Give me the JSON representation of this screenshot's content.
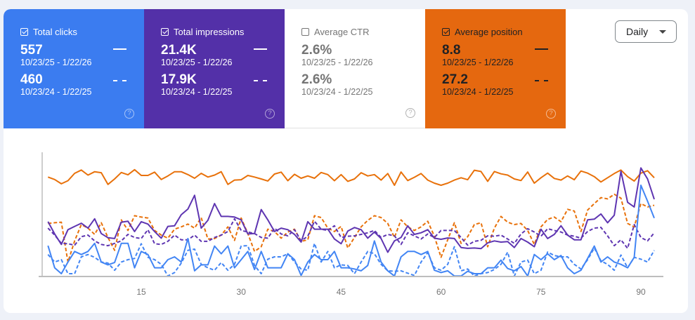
{
  "metrics": [
    {
      "label": "Total clicks",
      "checked": true,
      "current": "557",
      "current_range": "10/23/25 - 1/22/26",
      "previous": "460",
      "previous_range": "10/23/24 - 1/22/25",
      "color": "#3b7cf0"
    },
    {
      "label": "Total impressions",
      "checked": true,
      "current": "21.4K",
      "current_range": "10/23/25 - 1/22/26",
      "previous": "17.9K",
      "previous_range": "10/23/24 - 1/22/25",
      "color": "#5330a8"
    },
    {
      "label": "Average CTR",
      "checked": false,
      "current": "2.6%",
      "current_range": "10/23/25 - 1/22/26",
      "previous": "2.6%",
      "previous_range": "10/23/24 - 1/22/25",
      "color": "#ffffff"
    },
    {
      "label": "Average position",
      "checked": true,
      "current": "8.8",
      "current_range": "10/23/25 - 1/22/26",
      "previous": "27.2",
      "previous_range": "10/23/24 - 1/22/25",
      "color": "#e5680f"
    }
  ],
  "help_glyph": "?",
  "granularity": {
    "selected": "Daily"
  },
  "chart_data": {
    "type": "line",
    "title": "",
    "xlabel": "",
    "ylabel": "",
    "x_range": [
      1,
      92
    ],
    "y_range_normalized": [
      0,
      100
    ],
    "xticks": [
      "15",
      "30",
      "45",
      "60",
      "75",
      "90"
    ],
    "xtick_values": [
      15,
      30,
      45,
      60,
      75,
      90
    ],
    "grid": false,
    "series": [
      {
        "name": "Average position (current)",
        "color": "#e8710a",
        "dash": false,
        "values": [
          81,
          79,
          75.5,
          78,
          84,
          86.7,
          82.6,
          85.3,
          84.5,
          75,
          79.4,
          84.7,
          82.8,
          87,
          82.3,
          82.3,
          85,
          79,
          81.9,
          85.3,
          85.3,
          83,
          80,
          84,
          81,
          82.6,
          85.3,
          75,
          78.5,
          78.8,
          82.3,
          81,
          79.4,
          77.8,
          83.4,
          85,
          78,
          83.2,
          80,
          81.9,
          80,
          84.7,
          83,
          78,
          83,
          77.5,
          79.4,
          84.5,
          81.9,
          83,
          78.5,
          83.8,
          74.3,
          85.1,
          78.1,
          80.8,
          83.8,
          78.5,
          76,
          74.3,
          76,
          78.5,
          80.4,
          78.8,
          86.5,
          85.5,
          77.5,
          85.5,
          83.6,
          82.6,
          79.4,
          78.1,
          85.1,
          76,
          80.4,
          84.2,
          79.8,
          78.5,
          81.9,
          78.8,
          85.9,
          84.2,
          81.3,
          77,
          80.4,
          83.8,
          86.7,
          81.3,
          77.7,
          84.2,
          86.1,
          80.4
        ]
      },
      {
        "name": "Average position (previous)",
        "color": "#e8710a",
        "dash": true,
        "values": [
          43.2,
          43.8,
          44.2,
          11.8,
          29,
          42.3,
          39.4,
          34.3,
          43.8,
          31.8,
          21.3,
          46.1,
          37.5,
          49.5,
          48.4,
          47.6,
          37.5,
          33.7,
          31.2,
          38.5,
          40.4,
          42.7,
          39.4,
          48,
          30.5,
          30.9,
          33.7,
          40.4,
          29.4,
          47.6,
          35,
          20.4,
          24.2,
          38.5,
          36.6,
          31.2,
          36.2,
          38.5,
          28.6,
          29.9,
          49.5,
          48,
          39.4,
          36.6,
          40.8,
          23.2,
          31.8,
          40.4,
          45.7,
          49.5,
          48,
          43.2,
          31.8,
          46.1,
          40.4,
          37.5,
          40.4,
          45,
          32.8,
          15.6,
          29.9,
          43.8,
          27,
          32.4,
          42.3,
          43.8,
          24.2,
          39.4,
          48.9,
          44.2,
          42.3,
          43.2,
          37.5,
          26.1,
          40.4,
          46.5,
          48.4,
          44.6,
          54.7,
          53.3,
          36.6,
          54.1,
          59.4,
          64.2,
          63.2,
          67,
          63.8,
          43.2,
          40.4,
          59.4,
          56.6,
          58
        ]
      },
      {
        "name": "Total impressions (current)",
        "color": "#5e35b1",
        "dash": false,
        "values": [
          44.6,
          34.6,
          26.1,
          38.1,
          40.8,
          43.4,
          39.4,
          47,
          35,
          31.6,
          30.9,
          44.2,
          45,
          36.6,
          44.6,
          42.7,
          36.6,
          31.2,
          40.8,
          41.3,
          50.3,
          54.9,
          66.1,
          39.4,
          45.7,
          59.4,
          48.9,
          48.9,
          48.4,
          46.1,
          34.6,
          35,
          54.5,
          46.1,
          36.6,
          39.4,
          38.1,
          34.3,
          28,
          44.6,
          38.5,
          38.5,
          38.5,
          30.5,
          26.7,
          37,
          39.9,
          38.1,
          31.2,
          36.2,
          30.9,
          19.7,
          29,
          31.8,
          41.3,
          34.3,
          35.6,
          38.1,
          31.2,
          30.3,
          31.4,
          30.9,
          23.6,
          22.9,
          23.2,
          22.7,
          27.4,
          29,
          28,
          28.4,
          23.6,
          30.9,
          28,
          24.2,
          38.5,
          30.9,
          34.3,
          41.3,
          33.7,
          29.9,
          29.9,
          46.1,
          46.7,
          50.9,
          43.8,
          49.9,
          85.7,
          60.4,
          56.6,
          88.4,
          79.4,
          62.9
        ]
      },
      {
        "name": "Total impressions (previous)",
        "color": "#5e35b1",
        "dash": true,
        "values": [
          39.4,
          33.7,
          27,
          26.7,
          25.5,
          32.4,
          33.7,
          29,
          26.1,
          25.1,
          27,
          29,
          34.3,
          31.8,
          30.9,
          38.1,
          26.7,
          26.1,
          28.6,
          33.7,
          29.9,
          29.9,
          33.7,
          28.6,
          28.6,
          31.8,
          33.7,
          36.6,
          47,
          37.5,
          36.2,
          35,
          31.8,
          31.2,
          39.4,
          34.6,
          33.1,
          38.1,
          29,
          32.8,
          45,
          38.5,
          37.5,
          41.3,
          31.8,
          32.8,
          33.1,
          34.3,
          35.6,
          37.5,
          31.8,
          34.3,
          33.1,
          26.1,
          35.6,
          33.1,
          30.5,
          34.6,
          31.8,
          37.5,
          37.5,
          37.5,
          31.8,
          25.5,
          28.6,
          29.5,
          33.1,
          32.8,
          33.7,
          30.5,
          27,
          34.6,
          38.9,
          36.2,
          32.8,
          38.9,
          37.5,
          36.2,
          33.7,
          32.8,
          31.2,
          36.6,
          39.4,
          40,
          33.1,
          25.1,
          29.9,
          22.9,
          42.3,
          31.8,
          29,
          35.6
        ]
      },
      {
        "name": "Total clicks (current)",
        "color": "#4285f4",
        "dash": false,
        "values": [
          25.1,
          7.1,
          2.3,
          11.8,
          20.4,
          17.9,
          20.4,
          27,
          11.8,
          9.5,
          11.4,
          27,
          27,
          7.1,
          20.4,
          17.9,
          7.1,
          7.1,
          13.7,
          16,
          11.8,
          30.9,
          4.6,
          9.5,
          9.5,
          24.8,
          18.5,
          24.8,
          7.1,
          13.7,
          20.4,
          5.7,
          20.4,
          7.1,
          7.1,
          7.1,
          18.5,
          13.7,
          0.8,
          11.8,
          17.9,
          13.7,
          13.7,
          20.4,
          7.1,
          7.1,
          6.1,
          4.6,
          9,
          29,
          11.8,
          4.6,
          0.4,
          16,
          20.4,
          20.4,
          17.9,
          20.4,
          5.1,
          3.2,
          4.6,
          0.4,
          0.4,
          4.2,
          2.3,
          2.3,
          7.1,
          7.1,
          13.3,
          6.5,
          4.6,
          8.1,
          0.4,
          17.9,
          13.7,
          18.5,
          13.7,
          17.1,
          7.1,
          2.3,
          5.1,
          14.7,
          24.8,
          11.8,
          16,
          11.8,
          9.9,
          7.1,
          15.6,
          74.3,
          61.3,
          47.6
        ]
      },
      {
        "name": "Total clicks (previous)",
        "color": "#4285f4",
        "dash": true,
        "values": [
          17.9,
          11.8,
          13.7,
          2.3,
          2.3,
          16,
          17.9,
          15.6,
          11.8,
          10.9,
          5.1,
          11.8,
          13.7,
          14.7,
          26.7,
          15.6,
          13.7,
          9.9,
          0.4,
          3.2,
          10.9,
          21.3,
          22.3,
          9.9,
          7.1,
          5.1,
          11.4,
          5.1,
          9.9,
          24.8,
          25.1,
          9,
          2.3,
          14.1,
          16,
          16,
          18.5,
          11.8,
          6.1,
          5.1,
          27,
          11.8,
          20.4,
          7.1,
          9.5,
          9,
          2.3,
          11.8,
          20.4,
          18.5,
          9.9,
          4.6,
          4.2,
          4.6,
          2.7,
          0.8,
          11.8,
          19.5,
          7.1,
          5.1,
          9.9,
          24.2,
          4.6,
          6.1,
          0.4,
          2.3,
          3.2,
          5.7,
          9.9,
          19.9,
          0.4,
          11.8,
          13.3,
          2.3,
          5.1,
          19.9,
          17.1,
          16,
          16,
          9.9,
          6.1,
          13.7,
          23.2,
          12.8,
          9.9,
          5.1,
          17.5,
          7.1,
          15.6,
          14.1,
          11.8,
          21.3
        ]
      }
    ]
  }
}
